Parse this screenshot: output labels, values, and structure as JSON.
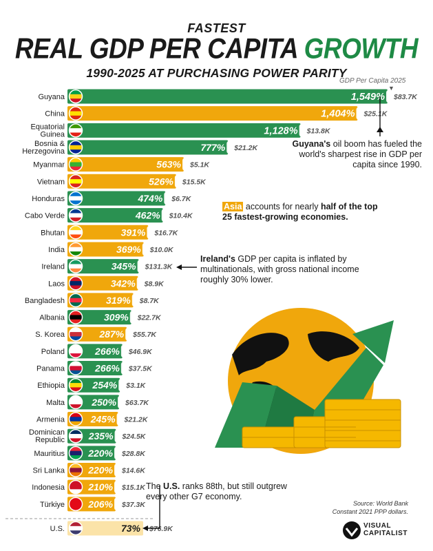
{
  "header": {
    "kicker": "FASTEST",
    "title_main": "REAL GDP PER CAPITA ",
    "title_accent": "GROWTH",
    "subtitle": "1990-2025 AT PURCHASING POWER PARITY",
    "gdp_col_label": "GDP Per Capita 2025",
    "gdp_col_arrow": "▼"
  },
  "colors": {
    "green": "#2a9151",
    "yellow": "#f0a70c",
    "us_bar": "#fbe3a8",
    "accent": "#1e8a45"
  },
  "chart_data": {
    "type": "bar",
    "orientation": "horizontal",
    "title": "REAL GDP PER CAPITA GROWTH",
    "subtitle": "1990-2025 AT PURCHASING POWER PARITY",
    "series": [
      {
        "name": "Real GDP per capita growth (%)",
        "values": [
          1549,
          1404,
          1128,
          777,
          563,
          526,
          474,
          462,
          391,
          369,
          345,
          342,
          319,
          309,
          287,
          266,
          266,
          254,
          250,
          245,
          235,
          220,
          220,
          210,
          206,
          73
        ]
      },
      {
        "name": "GDP Per Capita 2025",
        "values": [
          "$83.7K",
          "$25.1K",
          "$13.8K",
          "$21.2K",
          "$5.1K",
          "$15.5K",
          "$6.7K",
          "$10.4K",
          "$16.7K",
          "$10.0K",
          "$131.3K",
          "$8.9K",
          "$8.7K",
          "$22.7K",
          "$55.7K",
          "$46.9K",
          "$37.5K",
          "$3.1K",
          "$63.7K",
          "$21.2K",
          "$24.5K",
          "$28.8K",
          "$14.6K",
          "$15.1K",
          "$37.3K",
          "$76.9K"
        ]
      }
    ],
    "categories": [
      "Guyana",
      "China",
      "Equatorial Guinea",
      "Bosnia & Herzegovina",
      "Myanmar",
      "Vietnam",
      "Honduras",
      "Cabo Verde",
      "Bhutan",
      "India",
      "Ireland",
      "Laos",
      "Bangladesh",
      "Albania",
      "S. Korea",
      "Poland",
      "Panama",
      "Ethiopia",
      "Malta",
      "Armenia",
      "Dominican Republic",
      "Mauritius",
      "Sri Lanka",
      "Indonesia",
      "Türkiye",
      "U.S."
    ],
    "labels": [
      "1,549%",
      "1,404%",
      "1,128%",
      "777%",
      "563%",
      "526%",
      "474%",
      "462%",
      "391%",
      "369%",
      "345%",
      "342%",
      "319%",
      "309%",
      "287%",
      "266%",
      "266%",
      "254%",
      "250%",
      "245%",
      "235%",
      "220%",
      "220%",
      "210%",
      "206%",
      "73%"
    ],
    "label_lines": [
      [
        "Guyana"
      ],
      [
        "China"
      ],
      [
        "Equatorial",
        "Guinea"
      ],
      [
        "Bosnia &",
        "Herzegovina"
      ],
      [
        "Myanmar"
      ],
      [
        "Vietnam"
      ],
      [
        "Honduras"
      ],
      [
        "Cabo Verde"
      ],
      [
        "Bhutan"
      ],
      [
        "India"
      ],
      [
        "Ireland"
      ],
      [
        "Laos"
      ],
      [
        "Bangladesh"
      ],
      [
        "Albania"
      ],
      [
        "S. Korea"
      ],
      [
        "Poland"
      ],
      [
        "Panama"
      ],
      [
        "Ethiopia"
      ],
      [
        "Malta"
      ],
      [
        "Armenia"
      ],
      [
        "Dominican",
        "Republic"
      ],
      [
        "Mauritius"
      ],
      [
        "Sri Lanka"
      ],
      [
        "Indonesia"
      ],
      [
        "Türkiye"
      ],
      [
        "U.S."
      ]
    ],
    "region": [
      "other",
      "asia",
      "other",
      "other",
      "asia",
      "asia",
      "other",
      "other",
      "asia",
      "asia",
      "other",
      "asia",
      "asia",
      "other",
      "asia",
      "other",
      "other",
      "other",
      "other",
      "asia",
      "other",
      "other",
      "asia",
      "asia",
      "asia",
      "us"
    ],
    "flags": [
      [
        "#009e49",
        "#fcd116",
        "#ce1126"
      ],
      [
        "#de2910",
        "#ffde00",
        "#de2910"
      ],
      [
        "#3e9a00",
        "#ffffff",
        "#e32118"
      ],
      [
        "#002395",
        "#fecb00",
        "#002395"
      ],
      [
        "#fecb00",
        "#34b233",
        "#ea2839"
      ],
      [
        "#da251d",
        "#ffff00",
        "#da251d"
      ],
      [
        "#0073cf",
        "#ffffff",
        "#0073cf"
      ],
      [
        "#003893",
        "#ffffff",
        "#cf2027"
      ],
      [
        "#ffd520",
        "#ffffff",
        "#ff4e12"
      ],
      [
        "#ff9933",
        "#ffffff",
        "#138808"
      ],
      [
        "#169b62",
        "#ffffff",
        "#ff883e"
      ],
      [
        "#ce1126",
        "#002868",
        "#ce1126"
      ],
      [
        "#006a4e",
        "#f42a41",
        "#006a4e"
      ],
      [
        "#e41e20",
        "#000000",
        "#e41e20"
      ],
      [
        "#ffffff",
        "#cd2e3a",
        "#0047a0"
      ],
      [
        "#ffffff",
        "#ffffff",
        "#dc143c"
      ],
      [
        "#ffffff",
        "#d21034",
        "#005293"
      ],
      [
        "#078930",
        "#fcdd09",
        "#da121a"
      ],
      [
        "#ffffff",
        "#ffffff",
        "#cf142b"
      ],
      [
        "#d90012",
        "#0033a0",
        "#f2a800"
      ],
      [
        "#002d62",
        "#ffffff",
        "#ce1126"
      ],
      [
        "#ea2839",
        "#1a206d",
        "#00a551"
      ],
      [
        "#ffbe29",
        "#8d153a",
        "#eb7400"
      ],
      [
        "#ce1126",
        "#ce1126",
        "#ffffff"
      ],
      [
        "#e30a17",
        "#e30a17",
        "#e30a17"
      ],
      [
        "#b22234",
        "#ffffff",
        "#3c3b6e"
      ]
    ],
    "xlim": [
      0,
      1549
    ]
  },
  "annotations": {
    "guyana_bold": "Guyana's",
    "guyana_rest": " oil boom has fueled the world's sharpest rise in GDP per capita since 1990.",
    "asia_hl": "Asia",
    "asia_mid": " accounts for nearly ",
    "asia_bold": "half of the top 25 fastest-growing economies.",
    "ireland_bold": "Ireland's",
    "ireland_rest": " GDP per capita is inflated by multinationals, with gross national income roughly 30% lower.",
    "us_pre": "The ",
    "us_bold": "U.S.",
    "us_rest": " ranks 88th, but still outgrew every other G7 economy."
  },
  "footer": {
    "source_line1": "Source: World Bank",
    "source_line2": "Constant 2021 PPP dollars.",
    "logo_line1": "VISUAL",
    "logo_line2": "CAPITALIST"
  }
}
